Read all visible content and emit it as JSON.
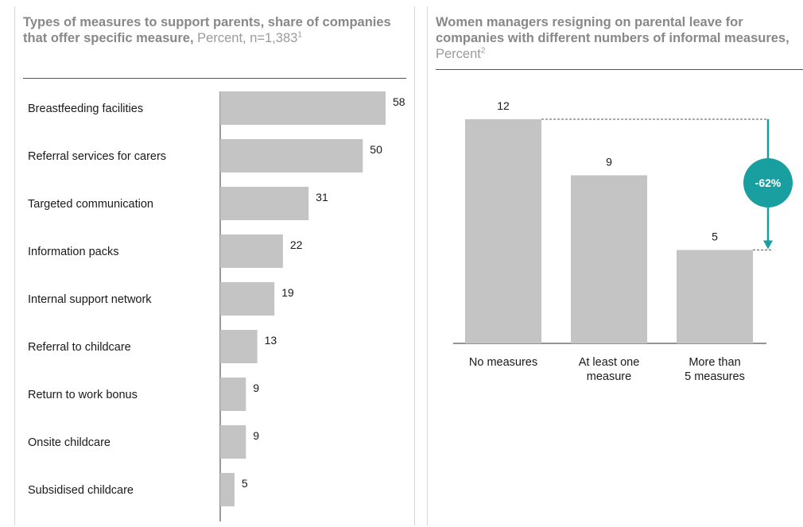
{
  "left": {
    "title_bold": "Types of measures to support parents, share of companies that offer specific measure,",
    "title_unit": " Percent, n=1,383",
    "title_sup": "1"
  },
  "right": {
    "title_bold": "Women managers resigning on parental leave for companies with different numbers of informal measures,",
    "title_unit": " Percent",
    "title_sup": "2"
  },
  "colors": {
    "bar": "#c4c4c4",
    "axis": "#555555",
    "accent": "#1a9fa0",
    "text": "#1a1a1a"
  },
  "chart_data": [
    {
      "type": "bar",
      "orientation": "horizontal",
      "title": "Types of measures to support parents, share of companies that offer specific measure",
      "unit": "Percent",
      "categories": [
        "Breastfeeding facilities",
        "Referral services for carers",
        "Targeted communication",
        "Information packs",
        "Internal support network",
        "Referral to childcare",
        "Return to work bonus",
        "Onsite childcare",
        "Subsidised childcare"
      ],
      "values": [
        58,
        50,
        31,
        22,
        19,
        13,
        9,
        9,
        5
      ],
      "xlim": [
        0,
        58
      ]
    },
    {
      "type": "bar",
      "orientation": "vertical",
      "title": "Women managers resigning on parental leave for companies with different numbers of informal measures",
      "unit": "Percent",
      "categories": [
        "No measures",
        "At least one measure",
        "More than 5 measures"
      ],
      "category_lines": [
        [
          "No measures"
        ],
        [
          "At least one",
          "measure"
        ],
        [
          "More than",
          "5 measures"
        ]
      ],
      "values": [
        12,
        9,
        5
      ],
      "ylim": [
        0,
        12
      ],
      "annotation": {
        "label": "-62%",
        "from_index": 0,
        "to_index": 2
      }
    }
  ]
}
